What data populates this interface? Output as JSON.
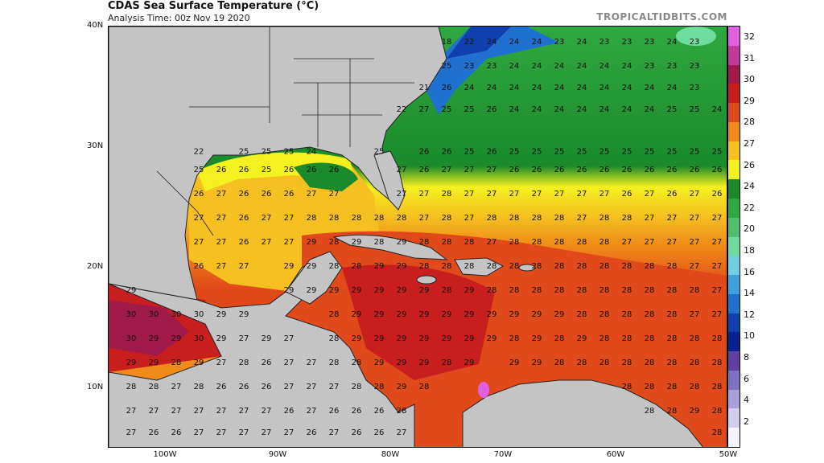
{
  "header": {
    "title": "CDAS Sea Surface Temperature (°C)",
    "subtitle": "Analysis Time: 00z Nov 19 2020",
    "credit": "TROPICALTIDBITS.COM"
  },
  "axes": {
    "lat_labels": [
      "40N",
      "30N",
      "20N",
      "10N"
    ],
    "lon_labels": [
      "100W",
      "90W",
      "80W",
      "70W",
      "60W",
      "50W"
    ]
  },
  "colorbar": {
    "labels": [
      "32",
      "31",
      "30",
      "29",
      "28",
      "27",
      "26",
      "24",
      "22",
      "20",
      "18",
      "16",
      "14",
      "12",
      "10",
      "8",
      "6",
      "4",
      "2"
    ],
    "colors": [
      "#e060e0",
      "#c03a9a",
      "#a01a4a",
      "#c81e1e",
      "#e04a1a",
      "#f08a1a",
      "#f5c020",
      "#f5f020",
      "#1a8a2a",
      "#30a840",
      "#50c070",
      "#70dca0",
      "#70d0e0",
      "#40a0e0",
      "#2070d0",
      "#1040b0",
      "#0a2090",
      "#6040a0",
      "#8070c0",
      "#a8a0d8",
      "#d0d0ee",
      "#f4f4fc"
    ]
  },
  "colors": {
    "land": "#c4c4c4",
    "border": "#222222"
  },
  "sst_rows": [
    {
      "lat": 38.8,
      "cells": [
        [
          75,
          18
        ],
        [
          73,
          22
        ],
        [
          71,
          24
        ],
        [
          69,
          24
        ],
        [
          67,
          24
        ],
        [
          65,
          23
        ],
        [
          63,
          24
        ],
        [
          61,
          23
        ],
        [
          59,
          23
        ],
        [
          57,
          23
        ],
        [
          55,
          24
        ],
        [
          53,
          23
        ]
      ]
    },
    {
      "lat": 36.8,
      "cells": [
        [
          75,
          25
        ],
        [
          73,
          23
        ],
        [
          71,
          23
        ],
        [
          69,
          24
        ],
        [
          67,
          24
        ],
        [
          65,
          24
        ],
        [
          63,
          24
        ],
        [
          61,
          24
        ],
        [
          59,
          24
        ],
        [
          57,
          23
        ],
        [
          55,
          23
        ],
        [
          53,
          23
        ]
      ]
    },
    {
      "lat": 35.0,
      "cells": [
        [
          77,
          21
        ],
        [
          75,
          26
        ],
        [
          73,
          24
        ],
        [
          71,
          24
        ],
        [
          69,
          24
        ],
        [
          67,
          24
        ],
        [
          65,
          24
        ],
        [
          63,
          24
        ],
        [
          61,
          24
        ],
        [
          59,
          24
        ],
        [
          57,
          24
        ],
        [
          55,
          24
        ],
        [
          53,
          23
        ]
      ]
    },
    {
      "lat": 33.2,
      "cells": [
        [
          79,
          22
        ],
        [
          77,
          27
        ],
        [
          75,
          25
        ],
        [
          73,
          25
        ],
        [
          71,
          26
        ],
        [
          69,
          24
        ],
        [
          67,
          24
        ],
        [
          65,
          24
        ],
        [
          63,
          24
        ],
        [
          61,
          24
        ],
        [
          59,
          24
        ],
        [
          57,
          24
        ],
        [
          55,
          25
        ],
        [
          53,
          25
        ],
        [
          51,
          24
        ]
      ]
    },
    {
      "lat": 29.7,
      "cells": [
        [
          97,
          22
        ],
        [
          93,
          25
        ],
        [
          91,
          25
        ],
        [
          89,
          25
        ],
        [
          87,
          24
        ],
        [
          81,
          25
        ],
        [
          77,
          26
        ],
        [
          75,
          26
        ],
        [
          73,
          25
        ],
        [
          71,
          26
        ],
        [
          69,
          25
        ],
        [
          67,
          25
        ],
        [
          65,
          25
        ],
        [
          63,
          25
        ],
        [
          61,
          25
        ],
        [
          59,
          25
        ],
        [
          57,
          25
        ],
        [
          55,
          25
        ],
        [
          53,
          25
        ],
        [
          51,
          25
        ]
      ]
    },
    {
      "lat": 28.2,
      "cells": [
        [
          97,
          25
        ],
        [
          95,
          26
        ],
        [
          93,
          26
        ],
        [
          91,
          25
        ],
        [
          89,
          26
        ],
        [
          87,
          26
        ],
        [
          85,
          26
        ],
        [
          79,
          27
        ],
        [
          77,
          26
        ],
        [
          75,
          27
        ],
        [
          73,
          27
        ],
        [
          71,
          27
        ],
        [
          69,
          26
        ],
        [
          67,
          26
        ],
        [
          65,
          26
        ],
        [
          63,
          26
        ],
        [
          61,
          26
        ],
        [
          59,
          26
        ],
        [
          57,
          26
        ],
        [
          55,
          26
        ],
        [
          53,
          26
        ],
        [
          51,
          26
        ]
      ]
    },
    {
      "lat": 26.2,
      "cells": [
        [
          97,
          26
        ],
        [
          95,
          27
        ],
        [
          93,
          26
        ],
        [
          91,
          26
        ],
        [
          89,
          26
        ],
        [
          87,
          27
        ],
        [
          85,
          27
        ],
        [
          79,
          27
        ],
        [
          77,
          27
        ],
        [
          75,
          28
        ],
        [
          73,
          27
        ],
        [
          71,
          27
        ],
        [
          69,
          27
        ],
        [
          67,
          27
        ],
        [
          65,
          27
        ],
        [
          63,
          27
        ],
        [
          61,
          27
        ],
        [
          59,
          26
        ],
        [
          57,
          27
        ],
        [
          55,
          26
        ],
        [
          53,
          27
        ],
        [
          51,
          26
        ]
      ]
    },
    {
      "lat": 24.2,
      "cells": [
        [
          97,
          27
        ],
        [
          95,
          27
        ],
        [
          93,
          26
        ],
        [
          91,
          27
        ],
        [
          89,
          27
        ],
        [
          87,
          28
        ],
        [
          85,
          28
        ],
        [
          83,
          28
        ],
        [
          81,
          28
        ],
        [
          79,
          28
        ],
        [
          77,
          27
        ],
        [
          75,
          28
        ],
        [
          73,
          27
        ],
        [
          71,
          28
        ],
        [
          69,
          28
        ],
        [
          67,
          28
        ],
        [
          65,
          28
        ],
        [
          63,
          27
        ],
        [
          61,
          28
        ],
        [
          59,
          28
        ],
        [
          57,
          27
        ],
        [
          55,
          27
        ],
        [
          53,
          27
        ],
        [
          51,
          27
        ]
      ]
    },
    {
      "lat": 22.2,
      "cells": [
        [
          97,
          27
        ],
        [
          95,
          27
        ],
        [
          93,
          26
        ],
        [
          91,
          27
        ],
        [
          89,
          27
        ],
        [
          87,
          29
        ],
        [
          85,
          28
        ],
        [
          83,
          29
        ],
        [
          81,
          28
        ],
        [
          79,
          29
        ],
        [
          77,
          28
        ],
        [
          75,
          28
        ],
        [
          73,
          28
        ],
        [
          71,
          27
        ],
        [
          69,
          28
        ],
        [
          67,
          28
        ],
        [
          65,
          28
        ],
        [
          63,
          28
        ],
        [
          61,
          28
        ],
        [
          59,
          27
        ],
        [
          57,
          27
        ],
        [
          55,
          27
        ],
        [
          53,
          27
        ],
        [
          51,
          27
        ]
      ]
    },
    {
      "lat": 20.2,
      "cells": [
        [
          97,
          26
        ],
        [
          95,
          27
        ],
        [
          93,
          27
        ],
        [
          89,
          29
        ],
        [
          87,
          29
        ],
        [
          85,
          28
        ],
        [
          83,
          28
        ],
        [
          81,
          29
        ],
        [
          79,
          29
        ],
        [
          77,
          28
        ],
        [
          75,
          28
        ],
        [
          73,
          28
        ],
        [
          71,
          28
        ],
        [
          69,
          28
        ],
        [
          67,
          28
        ],
        [
          65,
          28
        ],
        [
          63,
          28
        ],
        [
          61,
          28
        ],
        [
          59,
          28
        ],
        [
          57,
          28
        ],
        [
          55,
          28
        ],
        [
          53,
          27
        ],
        [
          51,
          27
        ]
      ]
    },
    {
      "lat": 18.2,
      "cells": [
        [
          103,
          29
        ],
        [
          89,
          29
        ],
        [
          87,
          29
        ],
        [
          85,
          29
        ],
        [
          83,
          29
        ],
        [
          81,
          29
        ],
        [
          79,
          29
        ],
        [
          77,
          29
        ],
        [
          75,
          28
        ],
        [
          73,
          29
        ],
        [
          71,
          28
        ],
        [
          69,
          28
        ],
        [
          67,
          28
        ],
        [
          65,
          28
        ],
        [
          63,
          28
        ],
        [
          61,
          28
        ],
        [
          59,
          28
        ],
        [
          57,
          28
        ],
        [
          55,
          28
        ],
        [
          53,
          28
        ],
        [
          51,
          27
        ]
      ]
    },
    {
      "lat": 16.2,
      "cells": [
        [
          103,
          30
        ],
        [
          101,
          30
        ],
        [
          99,
          30
        ],
        [
          97,
          30
        ],
        [
          95,
          29
        ],
        [
          93,
          29
        ],
        [
          85,
          28
        ],
        [
          83,
          29
        ],
        [
          81,
          29
        ],
        [
          79,
          29
        ],
        [
          77,
          29
        ],
        [
          75,
          29
        ],
        [
          73,
          29
        ],
        [
          71,
          29
        ],
        [
          69,
          29
        ],
        [
          67,
          29
        ],
        [
          65,
          29
        ],
        [
          63,
          28
        ],
        [
          61,
          28
        ],
        [
          59,
          28
        ],
        [
          57,
          28
        ],
        [
          55,
          28
        ],
        [
          53,
          27
        ],
        [
          51,
          27
        ]
      ]
    },
    {
      "lat": 14.2,
      "cells": [
        [
          103,
          30
        ],
        [
          101,
          29
        ],
        [
          99,
          29
        ],
        [
          97,
          30
        ],
        [
          95,
          29
        ],
        [
          93,
          27
        ],
        [
          91,
          29
        ],
        [
          89,
          27
        ],
        [
          85,
          28
        ],
        [
          83,
          29
        ],
        [
          81,
          29
        ],
        [
          79,
          29
        ],
        [
          77,
          29
        ],
        [
          75,
          29
        ],
        [
          73,
          29
        ],
        [
          71,
          29
        ],
        [
          69,
          28
        ],
        [
          67,
          29
        ],
        [
          65,
          28
        ],
        [
          63,
          29
        ],
        [
          61,
          28
        ],
        [
          59,
          28
        ],
        [
          57,
          28
        ],
        [
          55,
          28
        ],
        [
          53,
          28
        ],
        [
          51,
          28
        ]
      ]
    },
    {
      "lat": 12.2,
      "cells": [
        [
          103,
          29
        ],
        [
          101,
          29
        ],
        [
          99,
          28
        ],
        [
          97,
          29
        ],
        [
          95,
          27
        ],
        [
          93,
          28
        ],
        [
          91,
          26
        ],
        [
          89,
          27
        ],
        [
          87,
          27
        ],
        [
          85,
          28
        ],
        [
          83,
          28
        ],
        [
          81,
          29
        ],
        [
          79,
          29
        ],
        [
          77,
          29
        ],
        [
          75,
          28
        ],
        [
          73,
          29
        ],
        [
          69,
          29
        ],
        [
          67,
          29
        ],
        [
          65,
          28
        ],
        [
          63,
          28
        ],
        [
          61,
          28
        ],
        [
          59,
          28
        ],
        [
          57,
          28
        ],
        [
          55,
          28
        ],
        [
          53,
          28
        ],
        [
          51,
          28
        ]
      ]
    },
    {
      "lat": 10.2,
      "cells": [
        [
          103,
          28
        ],
        [
          101,
          28
        ],
        [
          99,
          27
        ],
        [
          97,
          28
        ],
        [
          95,
          26
        ],
        [
          93,
          26
        ],
        [
          91,
          26
        ],
        [
          89,
          27
        ],
        [
          87,
          27
        ],
        [
          85,
          27
        ],
        [
          83,
          28
        ],
        [
          81,
          28
        ],
        [
          79,
          29
        ],
        [
          77,
          28
        ],
        [
          59,
          28
        ],
        [
          57,
          28
        ],
        [
          55,
          28
        ],
        [
          53,
          28
        ],
        [
          51,
          28
        ]
      ]
    },
    {
      "lat": 8.2,
      "cells": [
        [
          103,
          27
        ],
        [
          101,
          27
        ],
        [
          99,
          27
        ],
        [
          97,
          27
        ],
        [
          95,
          27
        ],
        [
          93,
          27
        ],
        [
          91,
          27
        ],
        [
          89,
          26
        ],
        [
          87,
          27
        ],
        [
          85,
          26
        ],
        [
          83,
          26
        ],
        [
          81,
          26
        ],
        [
          79,
          28
        ],
        [
          57,
          28
        ],
        [
          55,
          28
        ],
        [
          53,
          29
        ],
        [
          51,
          28
        ]
      ]
    },
    {
      "lat": 6.4,
      "cells": [
        [
          103,
          27
        ],
        [
          101,
          26
        ],
        [
          99,
          26
        ],
        [
          97,
          27
        ],
        [
          95,
          27
        ],
        [
          93,
          27
        ],
        [
          91,
          27
        ],
        [
          89,
          27
        ],
        [
          87,
          26
        ],
        [
          85,
          27
        ],
        [
          83,
          26
        ],
        [
          81,
          26
        ],
        [
          79,
          27
        ],
        [
          51,
          28
        ]
      ]
    }
  ]
}
